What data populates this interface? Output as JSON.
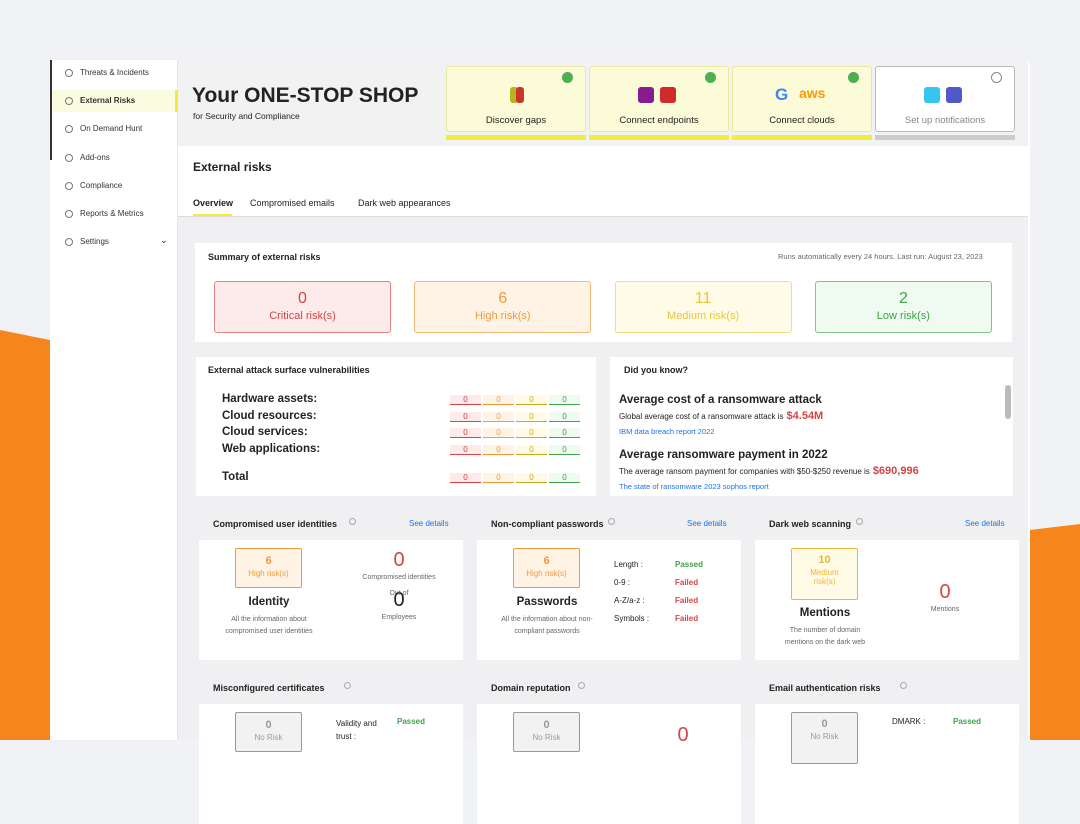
{
  "sidebar": {
    "items": [
      "Threats & Incidents",
      "External Risks",
      "On Demand Hunt",
      "Add-ons",
      "Compliance",
      "Reports & Metrics",
      "Settings"
    ]
  },
  "header": {
    "title": "Your ONE-STOP SHOP",
    "subtitle": "for Security and Compliance",
    "steps": [
      {
        "label": "Discover gaps",
        "done": true
      },
      {
        "label": "Connect endpoints",
        "done": true
      },
      {
        "label": "Connect clouds",
        "done": true,
        "logos": [
          "G",
          "aws"
        ]
      },
      {
        "label": "Set up notifications",
        "done": false
      }
    ]
  },
  "page": {
    "title": "External risks",
    "tabs": [
      "Overview",
      "Compromised emails",
      "Dark web appearances"
    ]
  },
  "summary": {
    "title": "Summary of external risks",
    "note": "Runs automatically every 24 hours. Last run: August 23, 2023",
    "risks": [
      {
        "count": 0,
        "label": "Critical risk(s)"
      },
      {
        "count": 6,
        "label": "High risk(s)"
      },
      {
        "count": 11,
        "label": "Medium risk(s)"
      },
      {
        "count": 2,
        "label": "Low risk(s)"
      }
    ]
  },
  "vulnerabilities": {
    "title": "External attack surface vulnerabilities",
    "rows": [
      {
        "label": "Hardware assets:",
        "counts": [
          0,
          0,
          0,
          0
        ]
      },
      {
        "label": "Cloud resources:",
        "counts": [
          0,
          0,
          0,
          0
        ]
      },
      {
        "label": "Cloud services:",
        "counts": [
          0,
          0,
          0,
          0
        ]
      },
      {
        "label": "Web applications:",
        "counts": [
          0,
          0,
          0,
          0
        ]
      },
      {
        "label": "Total",
        "counts": [
          0,
          0,
          0,
          0
        ]
      }
    ]
  },
  "did_you_know": {
    "title": "Did you know?",
    "facts": [
      {
        "heading": "Average cost of a ransomware attack",
        "text": "Global average cost of a ransomware attack is",
        "highlight": "$4.54M",
        "link": "IBM data breach report 2022"
      },
      {
        "heading": "Average ransomware payment in 2022",
        "text": "The average ransom payment for companies with $50-$250 revenue is",
        "highlight": "$690,996",
        "link": "The state of ransomware 2023 sophos report"
      }
    ]
  },
  "cards": [
    {
      "title": "Compromised user identities",
      "link": "See details",
      "badge": {
        "count": 6,
        "label": "High risk(s)"
      },
      "name": "Identity",
      "description": "All the information about compromised user identities",
      "stats": [
        {
          "value": 0,
          "label": "Compromised identities"
        },
        {
          "value": 0,
          "label": "Employees"
        }
      ],
      "between": "Out of"
    },
    {
      "title": "Non-compliant passwords",
      "link": "See details",
      "badge": {
        "count": 6,
        "label": "High risk(s)"
      },
      "name": "Passwords",
      "description": "All the information about non-compliant passwords",
      "checks": [
        {
          "label": "Length :",
          "status": "Passed"
        },
        {
          "label": "0-9 :",
          "status": "Failed"
        },
        {
          "label": "A-Z/a-z :",
          "status": "Failed"
        },
        {
          "label": "Symbols :",
          "status": "Failed"
        }
      ]
    },
    {
      "title": "Dark web scanning",
      "link": "See details",
      "badge": {
        "count": 10,
        "label": "Medium risk(s)"
      },
      "name": "Mentions",
      "description": "The number of domain mentions on the dark web",
      "stats": [
        {
          "value": 0,
          "label": "Mentions"
        }
      ]
    },
    {
      "title": "Misconfigured certificates",
      "badge": {
        "count": 0,
        "label": "No Risk"
      },
      "checks": [
        {
          "label": "Validity and trust :",
          "status": "Passed"
        }
      ]
    },
    {
      "title": "Domain reputation",
      "badge": {
        "count": 0,
        "label": "No Risk"
      },
      "stats": [
        {
          "value": 0
        }
      ]
    },
    {
      "title": "Email authentication risks",
      "badge": {
        "count": 0,
        "label": "No Risk"
      },
      "checks": [
        {
          "label": "DMARK :",
          "status": "Passed"
        }
      ]
    }
  ]
}
